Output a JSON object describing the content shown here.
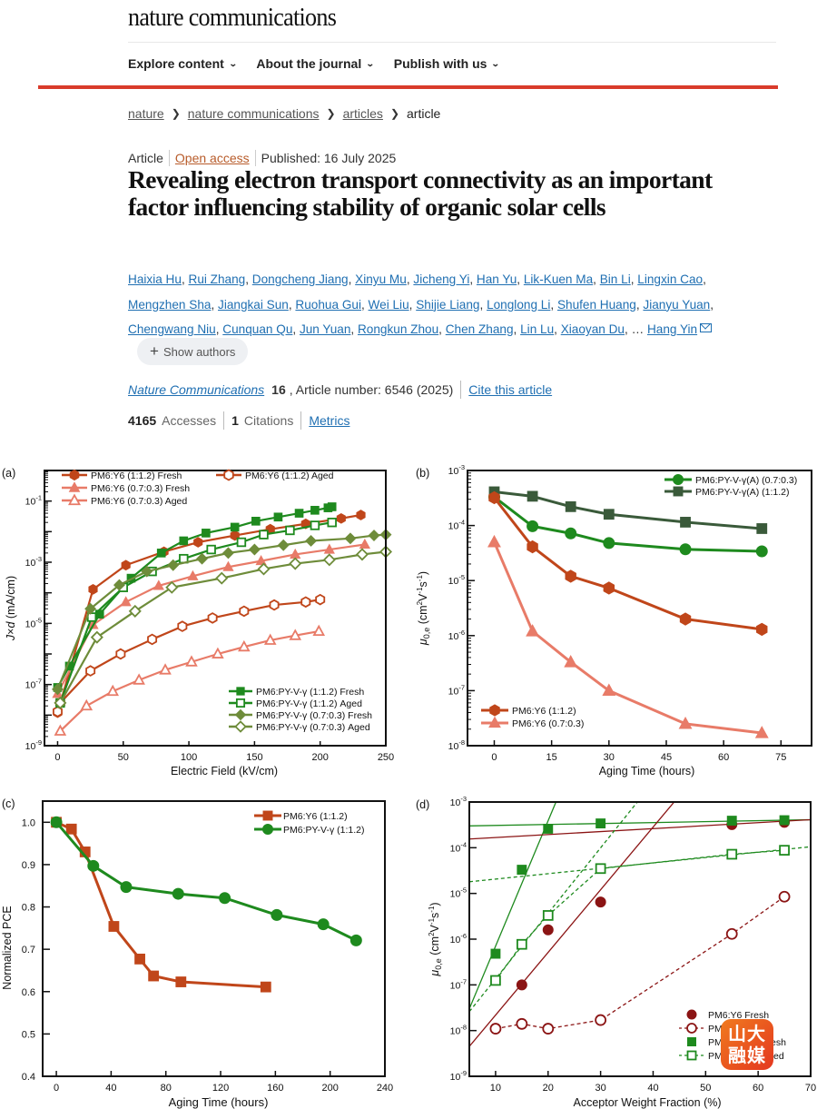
{
  "header": {
    "brand": "nature communications",
    "nav": [
      {
        "label": "Explore content"
      },
      {
        "label": "About the journal"
      },
      {
        "label": "Publish with us"
      }
    ],
    "accent_color": "#d93b2b"
  },
  "breadcrumb": {
    "items": [
      "nature",
      "nature communications",
      "articles",
      "article"
    ]
  },
  "article": {
    "type": "Article",
    "open_access": "Open access",
    "published": "Published: 16 July 2025",
    "title": "Revealing electron transport connectivity as an important factor influencing stability of organic solar cells",
    "authors": [
      "Haixia Hu",
      "Rui Zhang",
      "Dongcheng Jiang",
      "Xinyu Mu",
      "Jicheng Yi",
      "Han Yu",
      "Lik-Kuen Ma",
      "Bin Li",
      "Lingxin Cao",
      "Mengzhen Sha",
      "Jiangkai Sun",
      "Ruohua Gui",
      "Wei Liu",
      "Shijie Liang",
      "Longlong Li",
      "Shufen Huang",
      "Jianyu Yuan",
      "Chengwang Niu",
      "Cunquan Qu",
      "Jun Yuan",
      "Rongkun Zhou",
      "Chen Zhang",
      "Lin Lu",
      "Xiaoyan Du"
    ],
    "ellipsis": "…",
    "last_author": "Hang Yin",
    "show_authors": "Show authors",
    "journal": "Nature Communications",
    "volume": "16",
    "article_number": ", Article number: 6546 (2025)",
    "cite": "Cite this article",
    "accesses_count": "4165",
    "accesses_label": "Accesses",
    "citations_count": "1",
    "citations_label": "Citations",
    "metrics": "Metrics"
  },
  "watermark": {
    "line1": "山大",
    "line2": "融媒"
  },
  "colors": {
    "y6_dark": "#c0461a",
    "y6_light": "#e87b68",
    "pyv_green": "#1e8a1e",
    "pyv_olive": "#6e8c3a",
    "pyv_darkgreen": "#3a5a3a",
    "maroon": "#8b1414"
  },
  "chart_data": [
    {
      "panel": "(a)",
      "type": "line",
      "xlabel": "Electric Field (kV/cm)",
      "ylabel": "J×d (mA/cm)",
      "xlim": [
        -10,
        250
      ],
      "ylim": [
        1e-09,
        1
      ],
      "yscale": "log",
      "xticks": [
        0,
        50,
        100,
        150,
        200,
        250
      ],
      "yticks": [
        "10-9",
        "10-7",
        "10-5",
        "10-3",
        "10-1"
      ],
      "legend_top": "top-left",
      "legend_bottom": "bottom-right",
      "series": [
        {
          "name": "PM6:Y6 (1:1.2) Fresh",
          "color": "#c0461a",
          "marker": "hexagon",
          "filled": true,
          "legend": "top",
          "x": [
            0,
            27,
            52,
            81,
            107,
            135,
            162,
            189,
            216,
            231
          ],
          "y": [
            1.2e-08,
            0.00013,
            0.0008,
            0.0022,
            0.0045,
            0.0075,
            0.012,
            0.018,
            0.027,
            0.035
          ]
        },
        {
          "name": "PM6:Y6 (1:1.2)  Aged",
          "color": "#c0461a",
          "marker": "hexagon",
          "filled": false,
          "legend": "top",
          "x": [
            0,
            2,
            25,
            48,
            72,
            95,
            118,
            142,
            165,
            189,
            200
          ],
          "y": [
            1.3e-08,
            2.5e-08,
            2.8e-07,
            1e-06,
            3e-06,
            8e-06,
            1.5e-05,
            2.5e-05,
            4e-05,
            5e-05,
            6e-05
          ]
        },
        {
          "name": "PM6:Y6 (0.7:0.3) Fresh",
          "color": "#e87b68",
          "marker": "triangle",
          "filled": true,
          "legend": "top",
          "x": [
            0,
            27,
            52,
            77,
            103,
            130,
            155,
            181,
            207,
            234
          ],
          "y": [
            5e-08,
            9e-06,
            5e-05,
            0.00017,
            0.00035,
            0.0007,
            0.0011,
            0.0018,
            0.0026,
            0.0038
          ]
        },
        {
          "name": "PM6:Y6 (0.7:0.3) Aged",
          "color": "#e87b68",
          "marker": "triangle",
          "filled": false,
          "legend": "top",
          "x": [
            2,
            22,
            42,
            62,
            82,
            102,
            122,
            142,
            162,
            181,
            199
          ],
          "y": [
            3e-09,
            2e-08,
            6e-08,
            1.4e-07,
            3e-07,
            5.5e-07,
            1e-06,
            1.7e-06,
            2.8e-06,
            4e-06,
            5.5e-06
          ]
        },
        {
          "name": "PM6:PY-V-γ (1:1.2) Fresh",
          "color": "#1e8a1e",
          "marker": "square",
          "filled": true,
          "legend": "bottom",
          "x": [
            0,
            9,
            32,
            56,
            79,
            96,
            113,
            135,
            151,
            168,
            184,
            196,
            206,
            209
          ],
          "y": [
            8e-08,
            4e-07,
            2e-05,
            0.0003,
            0.002,
            0.005,
            0.009,
            0.014,
            0.022,
            0.03,
            0.04,
            0.05,
            0.06,
            0.065
          ]
        },
        {
          "name": "PM6:PY-V-γ (1:1.2) Aged",
          "color": "#1e8a1e",
          "marker": "square",
          "filled": false,
          "legend": "bottom",
          "x": [
            2,
            26,
            50,
            72,
            96,
            117,
            140,
            157,
            177,
            196,
            209
          ],
          "y": [
            2.5e-08,
            1.6e-05,
            0.00015,
            0.0005,
            0.0013,
            0.0026,
            0.0045,
            0.008,
            0.011,
            0.016,
            0.02
          ]
        },
        {
          "name": "PM6:PY-V-γ (0.7:0.3) Fresh",
          "color": "#6e8c3a",
          "marker": "diamond",
          "filled": true,
          "legend": "bottom",
          "x": [
            0,
            25,
            47,
            68,
            88,
            110,
            130,
            150,
            172,
            193,
            223,
            241,
            250
          ],
          "y": [
            7e-08,
            3e-05,
            0.00018,
            0.0005,
            0.0008,
            0.0013,
            0.002,
            0.0026,
            0.0036,
            0.005,
            0.006,
            0.0075,
            0.008
          ]
        },
        {
          "name": "PM6:PY-V-γ (0.7:0.3) Aged",
          "color": "#6e8c3a",
          "marker": "diamond",
          "filled": false,
          "legend": "bottom",
          "x": [
            2,
            30,
            59,
            87,
            125,
            157,
            181,
            207,
            232,
            250
          ],
          "y": [
            2.5e-08,
            3.5e-06,
            2.5e-05,
            0.00015,
            0.0003,
            0.0006,
            0.0009,
            0.0012,
            0.0018,
            0.0022
          ]
        }
      ]
    },
    {
      "panel": "(b)",
      "type": "line",
      "xlabel": "Aging Time (hours)",
      "ylabel": "μ0,e (cm²V⁻¹s⁻¹)",
      "xlim": [
        -7,
        83
      ],
      "ylim": [
        1e-08,
        0.001
      ],
      "yscale": "log",
      "xticks": [
        0,
        15,
        30,
        45,
        60,
        75
      ],
      "yticks": [
        "10-8",
        "10-7",
        "10-6",
        "10-5",
        "10-4",
        "10-3"
      ],
      "legend_top": "top-right",
      "legend_bottom": "bottom-left",
      "x": [
        0,
        10,
        20,
        30,
        50,
        70
      ],
      "series": [
        {
          "name": "PM6:PY-V-γ(A) (0.7:0.3)",
          "color": "#1e8a1e",
          "marker": "circle",
          "legend": "top",
          "values": [
            0.00033,
            9.7e-05,
            7.2e-05,
            4.8e-05,
            3.7e-05,
            3.4e-05
          ]
        },
        {
          "name": "PM6:PY-V-γ(A) (1:1.2)",
          "color": "#3a5a3a",
          "marker": "square",
          "legend": "top",
          "values": [
            0.00041,
            0.00034,
            0.00022,
            0.00016,
            0.000115,
            8.8e-05
          ]
        },
        {
          "name": "PM6:Y6 (1:1.2)",
          "color": "#c0461a",
          "marker": "hexagon",
          "legend": "bottom",
          "values": [
            0.00032,
            4.1e-05,
            1.2e-05,
            7.3e-06,
            2e-06,
            1.3e-06
          ]
        },
        {
          "name": "PM6:Y6 (0.7:0.3)",
          "color": "#e87b68",
          "marker": "triangle",
          "legend": "bottom",
          "values": [
            5e-05,
            1.2e-06,
            3.3e-07,
            1e-07,
            2.5e-08,
            1.7e-08
          ]
        }
      ]
    },
    {
      "panel": "(c)",
      "type": "line",
      "xlabel": "Aging Time (hours)",
      "ylabel": "Normalized PCE",
      "xlim": [
        -10,
        240
      ],
      "ylim": [
        0.4,
        1.05
      ],
      "xticks": [
        0,
        40,
        80,
        120,
        160,
        200,
        240
      ],
      "yticks": [
        0.4,
        0.5,
        0.6,
        0.7,
        0.8,
        0.9,
        1.0
      ],
      "legend": "top-right",
      "series": [
        {
          "name": "PM6:Y6 (1:1.2)",
          "color": "#c0461a",
          "marker": "square",
          "x": [
            0,
            11,
            21,
            42,
            61,
            71,
            91,
            153
          ],
          "y": [
            1.0,
            0.984,
            0.93,
            0.754,
            0.677,
            0.637,
            0.623,
            0.611
          ]
        },
        {
          "name": "PM6:PY-V-γ (1:1.2)",
          "color": "#1e8a1e",
          "marker": "circle",
          "x": [
            0,
            27,
            51,
            89,
            123,
            161,
            195,
            219
          ],
          "y": [
            1.0,
            0.897,
            0.847,
            0.831,
            0.821,
            0.781,
            0.759,
            0.721
          ]
        }
      ]
    },
    {
      "panel": "(d)",
      "type": "scatter",
      "xlabel": "Acceptor Weight Fraction (%)",
      "ylabel": "μ0,e (cm²V⁻¹s⁻¹)",
      "xlim": [
        5,
        70
      ],
      "ylim": [
        1e-09,
        0.001
      ],
      "yscale": "log",
      "xticks": [
        10,
        20,
        30,
        40,
        50,
        60,
        70
      ],
      "yticks": [
        "10-9",
        "10-8",
        "10-7",
        "10-6",
        "10-5",
        "10-4",
        "10-3"
      ],
      "legend": "bottom-right",
      "series": [
        {
          "name": "PM6:Y6 Fresh",
          "color": "#8b1414",
          "marker": "circle",
          "filled": true,
          "line": "none",
          "x": [
            15,
            20,
            30,
            55,
            65
          ],
          "y": [
            1e-07,
            1.6e-06,
            6.5e-06,
            0.00032,
            0.00036
          ]
        },
        {
          "name": "PM6:Y6 Aged",
          "color": "#8b1414",
          "marker": "circle",
          "filled": false,
          "line": "dashed",
          "x": [
            10,
            15,
            20,
            30,
            55,
            65
          ],
          "y": [
            1.1e-08,
            1.4e-08,
            1.1e-08,
            1.7e-08,
            1.3e-06,
            8.5e-06
          ]
        },
        {
          "name": "PM6:PY-V-γ Fresh",
          "color": "#1e8a1e",
          "marker": "square",
          "filled": true,
          "line": "none",
          "x": [
            10,
            15,
            20,
            30,
            55,
            65
          ],
          "y": [
            4.8e-07,
            3.3e-05,
            0.00026,
            0.00034,
            0.00039,
            0.0004
          ]
        },
        {
          "name": "PM6:PY-V-γ Aged",
          "color": "#1e8a1e",
          "marker": "square",
          "filled": false,
          "line": "dashed",
          "x": [
            10,
            15,
            20,
            30,
            55,
            65
          ],
          "y": [
            1.25e-07,
            7.7e-07,
            3.3e-06,
            3.5e-05,
            7.2e-05,
            8.8e-05
          ]
        }
      ],
      "fit_lines": [
        {
          "color": "#1e8a1e",
          "style": "solid",
          "x": [
            5,
            70
          ],
          "y": [
            0.0003,
            0.00041
          ]
        },
        {
          "color": "#1e8a1e",
          "style": "solid",
          "x": [
            5,
            21.5
          ],
          "y": [
            3e-08,
            0.001
          ]
        },
        {
          "color": "#8b1414",
          "style": "solid",
          "x": [
            5,
            70
          ],
          "y": [
            0.000155,
            0.00041
          ]
        },
        {
          "color": "#8b1414",
          "style": "solid",
          "x": [
            5,
            44
          ],
          "y": [
            4.5e-09,
            0.001
          ]
        },
        {
          "color": "#1e8a1e",
          "style": "dashed",
          "x": [
            5,
            70
          ],
          "y": [
            1.8e-05,
            0.000105
          ]
        },
        {
          "color": "#1e8a1e",
          "style": "dashed",
          "x": [
            5,
            37
          ],
          "y": [
            2.6e-08,
            0.001
          ]
        }
      ]
    }
  ]
}
